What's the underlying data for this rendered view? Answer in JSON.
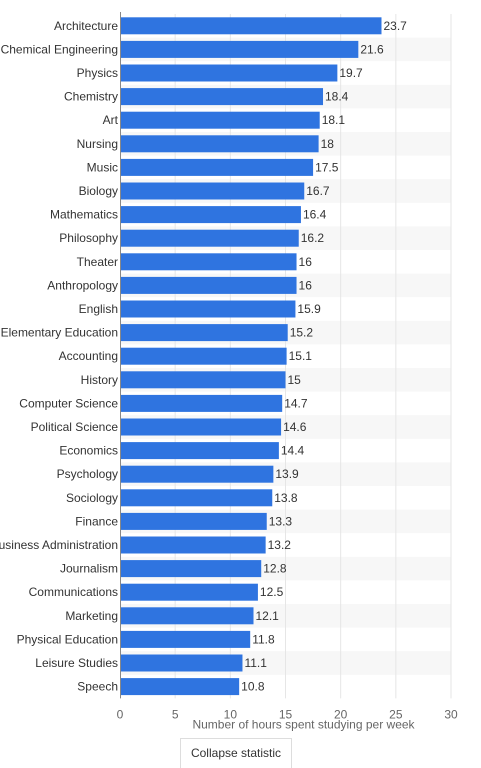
{
  "chart_data": {
    "type": "bar",
    "orientation": "horizontal",
    "categories": [
      "Architecture",
      "Chemical Engineering",
      "Physics",
      "Chemistry",
      "Art",
      "Nursing",
      "Music",
      "Biology",
      "Mathematics",
      "Philosophy",
      "Theater",
      "Anthropology",
      "English",
      "Elementary Education",
      "Accounting",
      "History",
      "Computer Science",
      "Political Science",
      "Economics",
      "Psychology",
      "Sociology",
      "Finance",
      "Business Administration",
      "Journalism",
      "Communications",
      "Marketing",
      "Physical Education",
      "Leisure Studies",
      "Speech"
    ],
    "values": [
      23.7,
      21.6,
      19.7,
      18.4,
      18.1,
      18,
      17.5,
      16.7,
      16.4,
      16.2,
      16,
      16,
      15.9,
      15.2,
      15.1,
      15,
      14.7,
      14.6,
      14.4,
      13.9,
      13.8,
      13.3,
      13.2,
      12.8,
      12.5,
      12.1,
      11.8,
      11.1,
      10.8
    ],
    "value_labels": [
      "23.7",
      "21.6",
      "19.7",
      "18.4",
      "18.1",
      "18",
      "17.5",
      "16.7",
      "16.4",
      "16.2",
      "16",
      "16",
      "15.9",
      "15.2",
      "15.1",
      "15",
      "14.7",
      "14.6",
      "14.4",
      "13.9",
      "13.8",
      "13.3",
      "13.2",
      "12.8",
      "12.5",
      "12.1",
      "11.8",
      "11.1",
      "10.8"
    ],
    "xlabel": "Number of hours spent studying per week",
    "xlim": [
      0,
      30
    ],
    "xticks": [
      "0",
      "5",
      "10",
      "15",
      "20",
      "25",
      "30"
    ],
    "grid": true,
    "bar_color": "#2f74e0",
    "alt_row_color": "#f7f7f7"
  },
  "controls": {
    "collapse_label": "Collapse statistic"
  }
}
